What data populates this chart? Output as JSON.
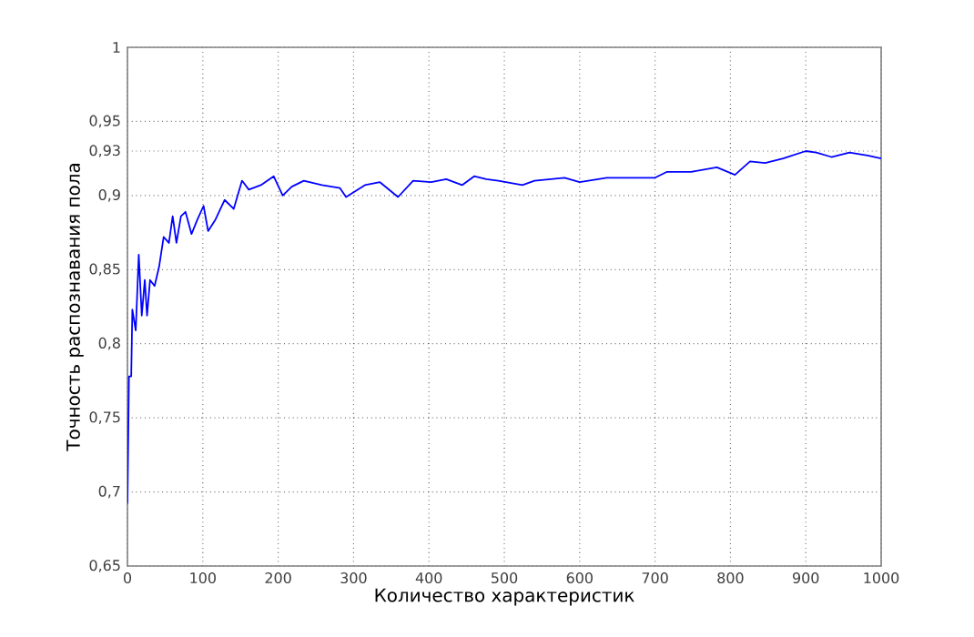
{
  "chart_data": {
    "type": "line",
    "xlabel": "Количество характеристик",
    "ylabel": "Точность распознавания пола",
    "xlim": [
      0,
      1000
    ],
    "xticks": [
      0,
      100,
      200,
      300,
      400,
      500,
      600,
      700,
      800,
      900,
      1000
    ],
    "ylim": [
      0.65,
      1
    ],
    "yticks": [
      {
        "value": 0.65,
        "label": "0,65"
      },
      {
        "value": 0.7,
        "label": "0,7"
      },
      {
        "value": 0.75,
        "label": "0,75"
      },
      {
        "value": 0.8,
        "label": "0,8"
      },
      {
        "value": 0.85,
        "label": "0,85"
      },
      {
        "value": 0.9,
        "label": "0,9"
      },
      {
        "value": 0.93,
        "label": "0,93"
      },
      {
        "value": 0.95,
        "label": "0,95"
      },
      {
        "value": 1,
        "label": "1"
      }
    ],
    "grid": true,
    "marker": "none",
    "line_style": "solid",
    "series": [
      {
        "color": "#0000ff",
        "x": [
          0,
          2,
          5,
          6.5,
          11,
          15,
          19,
          23,
          26,
          30,
          36,
          42,
          48,
          55,
          60,
          65,
          71,
          77,
          85,
          93,
          101,
          107,
          117,
          129,
          141,
          152,
          161,
          177,
          194,
          206,
          218,
          234,
          258,
          282,
          290,
          315,
          335,
          359,
          379,
          403,
          423,
          444,
          460,
          476,
          492,
          524,
          540,
          580,
          600,
          636,
          668,
          700,
          716,
          748,
          782,
          806,
          826,
          846,
          870,
          900,
          914,
          934,
          958,
          982,
          1000
        ],
        "values": [
          0.692,
          0.778,
          0.778,
          0.823,
          0.809,
          0.86,
          0.819,
          0.843,
          0.819,
          0.843,
          0.839,
          0.852,
          0.872,
          0.868,
          0.886,
          0.868,
          0.886,
          0.889,
          0.874,
          0.884,
          0.893,
          0.876,
          0.884,
          0.897,
          0.891,
          0.91,
          0.904,
          0.907,
          0.913,
          0.9,
          0.906,
          0.91,
          0.907,
          0.905,
          0.899,
          0.907,
          0.909,
          0.899,
          0.91,
          0.909,
          0.911,
          0.907,
          0.913,
          0.911,
          0.91,
          0.907,
          0.91,
          0.912,
          0.909,
          0.912,
          0.912,
          0.912,
          0.916,
          0.916,
          0.919,
          0.914,
          0.923,
          0.922,
          0.925,
          0.93,
          0.929,
          0.926,
          0.929,
          0.927,
          0.925
        ]
      }
    ]
  }
}
